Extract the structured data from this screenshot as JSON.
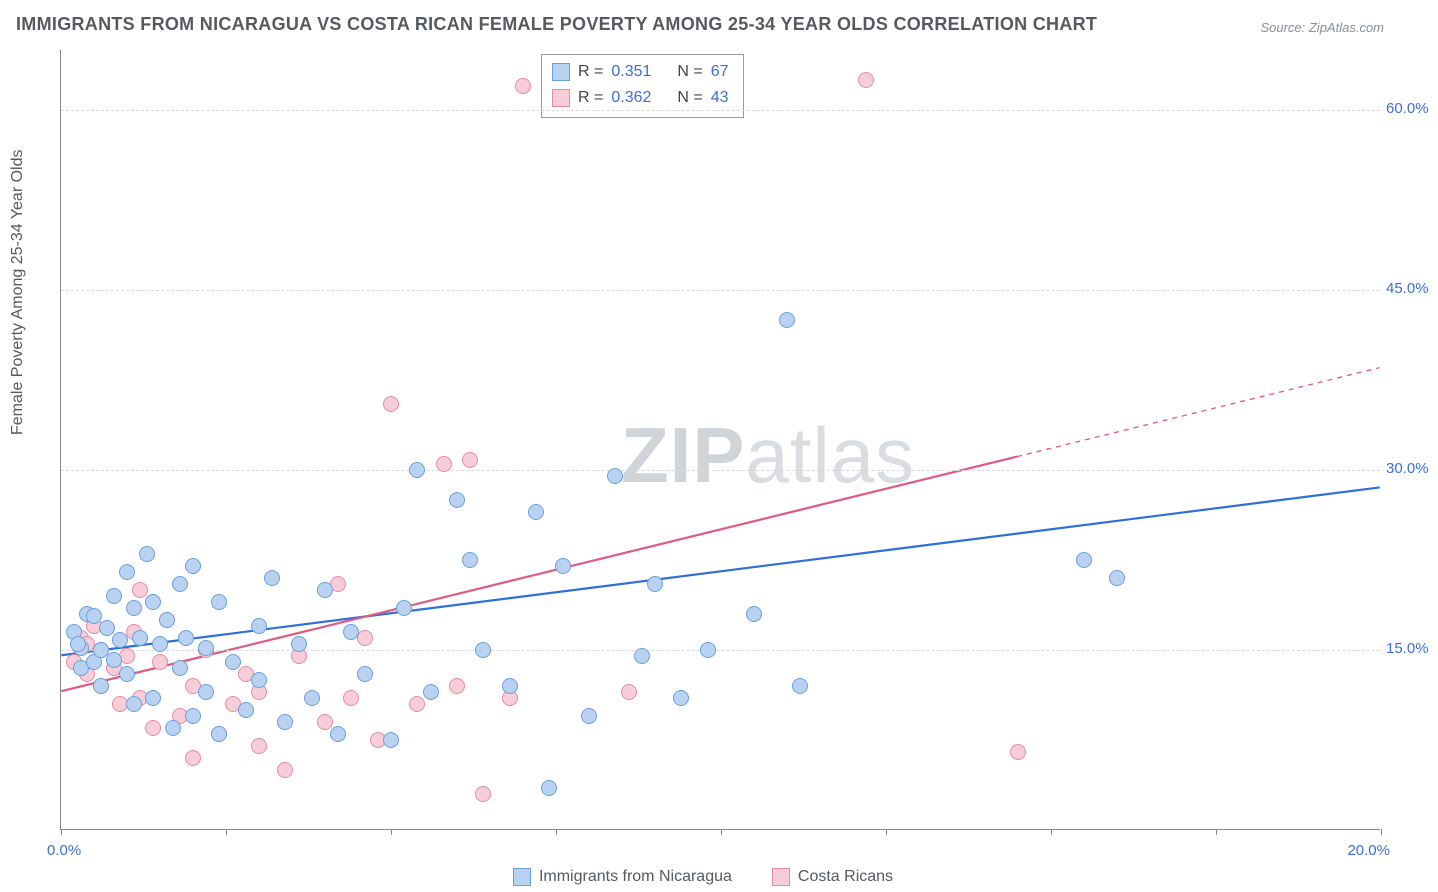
{
  "title": "IMMIGRANTS FROM NICARAGUA VS COSTA RICAN FEMALE POVERTY AMONG 25-34 YEAR OLDS CORRELATION CHART",
  "source": "Source: ZipAtlas.com",
  "watermark_bold": "ZIP",
  "watermark_rest": "atlas",
  "ylabel": "Female Poverty Among 25-34 Year Olds",
  "chart": {
    "type": "scatter",
    "background_color": "#ffffff",
    "grid_color": "#d7d9dc",
    "axis_color": "#888888",
    "tick_label_color": "#3b6fd6",
    "tick_fontsize": 15,
    "label_color": "#555a60",
    "label_fontsize": 16,
    "title_color": "#555a60",
    "title_fontsize": 18,
    "xlim": [
      0,
      20
    ],
    "ylim": [
      0,
      65
    ],
    "yticks": [
      15,
      30,
      45,
      60
    ],
    "ytick_labels": [
      "15.0%",
      "30.0%",
      "45.0%",
      "60.0%"
    ],
    "xtick_positions": [
      0,
      2.5,
      5,
      7.5,
      10,
      12.5,
      15,
      17.5,
      20
    ],
    "xtick_min_label": "0.0%",
    "xtick_max_label": "20.0%",
    "marker_radius": 8,
    "marker_border_width": 1.2,
    "trend_line_width": 2.2,
    "series": [
      {
        "key": "nicaragua",
        "label": "Immigrants from Nicaragua",
        "fill": "#b9d2f1",
        "stroke": "#6a9fe0",
        "line_color": "#2e6fd8",
        "r_label": "R =",
        "r_value": "0.351",
        "n_label": "N =",
        "n_value": "67",
        "trend": {
          "x1": 0,
          "y1": 14.5,
          "x2": 20,
          "y2": 28.5,
          "dash_from_x": null
        },
        "points": [
          [
            0.2,
            16.5
          ],
          [
            0.3,
            15.2
          ],
          [
            0.4,
            18.0
          ],
          [
            0.3,
            13.5
          ],
          [
            0.5,
            14.0
          ],
          [
            0.5,
            17.8
          ],
          [
            0.6,
            15.0
          ],
          [
            0.6,
            12.0
          ],
          [
            0.7,
            16.8
          ],
          [
            0.8,
            19.5
          ],
          [
            0.8,
            14.2
          ],
          [
            0.9,
            15.8
          ],
          [
            1.0,
            21.5
          ],
          [
            1.0,
            13.0
          ],
          [
            1.1,
            18.5
          ],
          [
            1.1,
            10.5
          ],
          [
            1.2,
            16.0
          ],
          [
            1.3,
            23.0
          ],
          [
            1.4,
            11.0
          ],
          [
            1.4,
            19.0
          ],
          [
            1.5,
            15.5
          ],
          [
            1.6,
            17.5
          ],
          [
            1.7,
            8.5
          ],
          [
            1.8,
            20.5
          ],
          [
            1.8,
            13.5
          ],
          [
            1.9,
            16.0
          ],
          [
            2.0,
            9.5
          ],
          [
            2.0,
            22.0
          ],
          [
            2.2,
            15.2
          ],
          [
            2.2,
            11.5
          ],
          [
            2.4,
            8.0
          ],
          [
            2.4,
            19.0
          ],
          [
            2.6,
            14.0
          ],
          [
            2.8,
            10.0
          ],
          [
            3.0,
            17.0
          ],
          [
            3.0,
            12.5
          ],
          [
            3.2,
            21.0
          ],
          [
            3.4,
            9.0
          ],
          [
            3.6,
            15.5
          ],
          [
            3.8,
            11.0
          ],
          [
            4.0,
            20.0
          ],
          [
            4.2,
            8.0
          ],
          [
            4.4,
            16.5
          ],
          [
            4.6,
            13.0
          ],
          [
            5.0,
            7.5
          ],
          [
            5.2,
            18.5
          ],
          [
            5.4,
            30.0
          ],
          [
            5.6,
            11.5
          ],
          [
            6.0,
            27.5
          ],
          [
            6.2,
            22.5
          ],
          [
            6.4,
            15.0
          ],
          [
            6.8,
            12.0
          ],
          [
            7.2,
            26.5
          ],
          [
            7.4,
            3.5
          ],
          [
            7.6,
            22.0
          ],
          [
            8.0,
            9.5
          ],
          [
            8.4,
            29.5
          ],
          [
            8.8,
            14.5
          ],
          [
            9.0,
            20.5
          ],
          [
            9.4,
            11.0
          ],
          [
            9.8,
            15.0
          ],
          [
            10.5,
            18.0
          ],
          [
            11.0,
            42.5
          ],
          [
            11.2,
            12.0
          ],
          [
            15.5,
            22.5
          ],
          [
            16.0,
            21.0
          ],
          [
            0.25,
            15.5
          ]
        ]
      },
      {
        "key": "costarica",
        "label": "Costa Ricans",
        "fill": "#f6cdd8",
        "stroke": "#e88aa3",
        "line_color": "#e05a82",
        "r_label": "R =",
        "r_value": "0.362",
        "n_label": "N =",
        "n_value": "43",
        "trend": {
          "x1": 0,
          "y1": 11.5,
          "x2": 20,
          "y2": 38.5,
          "dash_from_x": 14.5
        },
        "points": [
          [
            0.2,
            14.0
          ],
          [
            0.3,
            16.0
          ],
          [
            0.4,
            13.0
          ],
          [
            0.4,
            15.5
          ],
          [
            0.5,
            17.0
          ],
          [
            0.6,
            12.0
          ],
          [
            0.6,
            15.0
          ],
          [
            0.8,
            13.5
          ],
          [
            0.9,
            10.5
          ],
          [
            1.0,
            14.5
          ],
          [
            1.1,
            16.5
          ],
          [
            1.2,
            20.0
          ],
          [
            1.2,
            11.0
          ],
          [
            1.4,
            8.5
          ],
          [
            1.5,
            14.0
          ],
          [
            1.6,
            17.5
          ],
          [
            1.8,
            9.5
          ],
          [
            2.0,
            12.0
          ],
          [
            2.0,
            6.0
          ],
          [
            2.2,
            15.0
          ],
          [
            2.4,
            8.0
          ],
          [
            2.6,
            10.5
          ],
          [
            2.8,
            13.0
          ],
          [
            3.0,
            7.0
          ],
          [
            3.0,
            11.5
          ],
          [
            3.4,
            5.0
          ],
          [
            3.6,
            14.5
          ],
          [
            4.0,
            9.0
          ],
          [
            4.2,
            20.5
          ],
          [
            4.4,
            11.0
          ],
          [
            4.8,
            7.5
          ],
          [
            5.0,
            35.5
          ],
          [
            5.4,
            10.5
          ],
          [
            5.8,
            30.5
          ],
          [
            6.0,
            12.0
          ],
          [
            6.2,
            30.8
          ],
          [
            6.4,
            3.0
          ],
          [
            6.8,
            11.0
          ],
          [
            7.0,
            62.0
          ],
          [
            8.6,
            11.5
          ],
          [
            12.2,
            62.5
          ],
          [
            14.5,
            6.5
          ],
          [
            4.6,
            16.0
          ]
        ]
      }
    ]
  }
}
